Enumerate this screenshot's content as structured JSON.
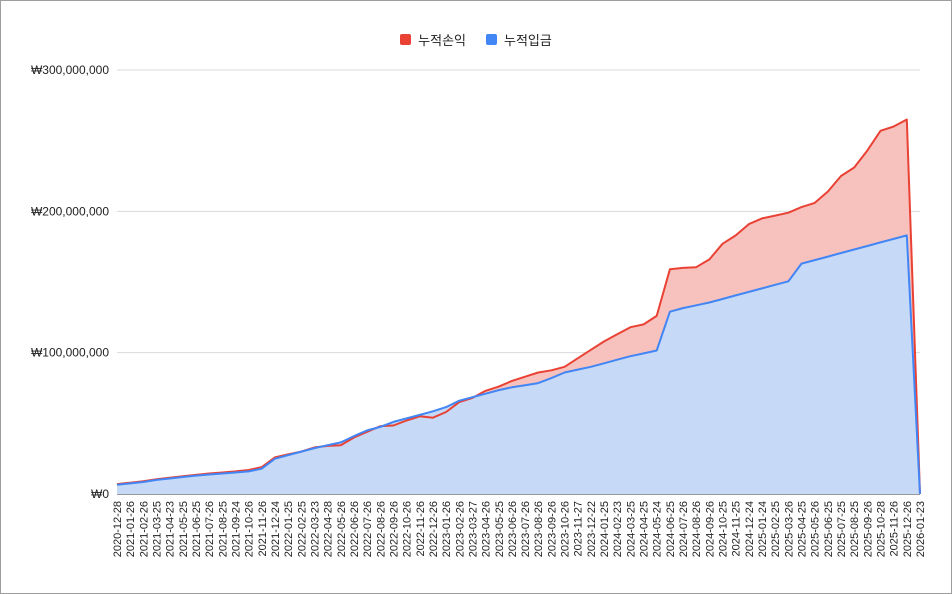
{
  "chart_data": {
    "type": "area",
    "legend_position": "top",
    "grid": true,
    "ylim": [
      0,
      300000000
    ],
    "y_ticks": [
      0,
      100000000,
      200000000,
      300000000
    ],
    "y_tick_labels": [
      "₩0",
      "₩100,000,000",
      "₩200,000,000",
      "₩300,000,000"
    ],
    "x": [
      "2020-12-28",
      "2021-01-26",
      "2021-02-26",
      "2021-03-25",
      "2021-04-23",
      "2021-05-25",
      "2021-06-25",
      "2021-07-26",
      "2021-08-25",
      "2021-09-24",
      "2021-10-26",
      "2021-11-26",
      "2021-12-24",
      "2022-01-25",
      "2022-02-25",
      "2022-03-23",
      "2022-04-28",
      "2022-05-26",
      "2022-06-26",
      "2022-07-26",
      "2022-08-26",
      "2022-09-26",
      "2022-10-26",
      "2022-11-26",
      "2022-12-26",
      "2023-01-26",
      "2023-02-26",
      "2023-03-27",
      "2023-04-26",
      "2023-05-25",
      "2023-06-26",
      "2023-07-26",
      "2023-08-26",
      "2023-09-26",
      "2023-10-26",
      "2023-11-27",
      "2023-12-22",
      "2024-01-25",
      "2024-02-23",
      "2024-03-25",
      "2024-04-25",
      "2024-05-24",
      "2024-06-25",
      "2024-07-26",
      "2024-08-26",
      "2024-09-26",
      "2024-10-25",
      "2024-11-25",
      "2024-12-24",
      "2025-01-24",
      "2025-02-25",
      "2025-03-26",
      "2025-04-25",
      "2025-05-26",
      "2025-06-25",
      "2025-07-25",
      "2025-08-25",
      "2025-09-26",
      "2025-10-28",
      "2025-11-26",
      "2025-12-26",
      "2026-01-23"
    ],
    "series": [
      {
        "name": "누적손익",
        "color": "#e94235",
        "fill": "#f7c2bd",
        "values": [
          7000000,
          8000000,
          9000000,
          10500000,
          11500000,
          12500000,
          13500000,
          14500000,
          15200000,
          16000000,
          17000000,
          19000000,
          26000000,
          28000000,
          30000000,
          33000000,
          34000000,
          34500000,
          40000000,
          44000000,
          48000000,
          48500000,
          52000000,
          55000000,
          54000000,
          58000000,
          65000000,
          68000000,
          73000000,
          76000000,
          80000000,
          83000000,
          86000000,
          87500000,
          90000000,
          96000000,
          102000000,
          108000000,
          113000000,
          118000000,
          120000000,
          126000000,
          159000000,
          160000000,
          160500000,
          166000000,
          177000000,
          183000000,
          191000000,
          195000000,
          197000000,
          199000000,
          203000000,
          206000000,
          214000000,
          225000000,
          231000000,
          243000000,
          257000000,
          260000000,
          265000000,
          0
        ]
      },
      {
        "name": "누적입금",
        "color": "#4285f4",
        "fill": "#c6d9f7",
        "values": [
          6500000,
          7500000,
          8500000,
          10000000,
          11000000,
          12000000,
          13000000,
          13800000,
          14500000,
          15200000,
          16000000,
          18000000,
          25000000,
          27500000,
          30000000,
          32500000,
          34500000,
          36500000,
          41000000,
          45000000,
          47500000,
          51000000,
          53500000,
          56000000,
          58500000,
          61500000,
          66000000,
          68500000,
          71000000,
          73500000,
          75500000,
          77000000,
          78500000,
          82000000,
          86000000,
          88000000,
          90000000,
          92500000,
          95000000,
          97500000,
          99500000,
          101500000,
          129000000,
          131500000,
          133500000,
          135500000,
          138000000,
          140500000,
          143000000,
          145500000,
          148000000,
          150500000,
          163000000,
          165500000,
          168000000,
          170500000,
          173000000,
          175500000,
          178000000,
          180500000,
          183000000,
          0
        ]
      }
    ]
  }
}
